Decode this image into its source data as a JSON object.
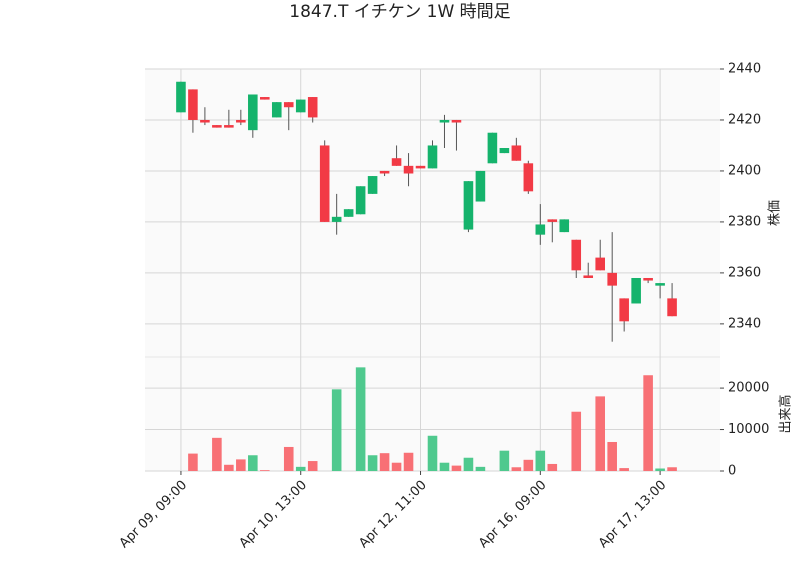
{
  "chart_data": {
    "type": "candlestick",
    "title": "1847.T イチケン 1W 時間足",
    "ylabel": "株価",
    "y2label": "出来高",
    "categories": [
      "Apr 09, 09:00",
      null,
      null,
      null,
      null,
      null,
      null,
      null,
      null,
      null,
      "Apr 10, 13:00",
      null,
      null,
      null,
      null,
      null,
      null,
      null,
      null,
      null,
      "Apr 12, 11:00",
      null,
      null,
      null,
      null,
      null,
      null,
      null,
      null,
      null,
      "Apr 16, 09:00",
      null,
      null,
      null,
      null,
      null,
      null,
      null,
      null,
      null,
      "Apr 17, 13:00",
      null
    ],
    "open": [
      2423,
      2432,
      2420,
      2418,
      2418,
      2420,
      2416,
      2429,
      2421,
      2427,
      2423,
      2429,
      2410,
      2380,
      2382,
      2383,
      2391,
      2400,
      2405,
      2402,
      2402,
      2401,
      2419,
      2420,
      2377,
      2388,
      2403,
      2407,
      2410,
      2403,
      2375,
      2381,
      2376,
      2373,
      2359,
      2366,
      2360,
      2350,
      2348,
      2358,
      2355,
      2350
    ],
    "high": [
      2435,
      2432,
      2425,
      2418,
      2424,
      2424,
      2430,
      2429,
      2427,
      2427,
      2428,
      2429,
      2412,
      2391,
      2385,
      2394,
      2398,
      2400,
      2410,
      2407,
      2402,
      2412,
      2422,
      2420,
      2396,
      2400,
      2415,
      2409,
      2413,
      2404,
      2387,
      2381,
      2381,
      2373,
      2364,
      2373,
      2376,
      2350,
      2358,
      2358,
      2356,
      2356
    ],
    "low": [
      2423,
      2415,
      2418,
      2417,
      2417,
      2418,
      2413,
      2428,
      2421,
      2416,
      2423,
      2419,
      2380,
      2375,
      2382,
      2383,
      2391,
      2398,
      2402,
      2394,
      2401,
      2401,
      2409,
      2408,
      2376,
      2388,
      2403,
      2407,
      2404,
      2391,
      2371,
      2372,
      2376,
      2358,
      2358,
      2361,
      2333,
      2337,
      2348,
      2356,
      2350,
      2343
    ],
    "close": [
      2435,
      2420,
      2419,
      2417,
      2417,
      2419,
      2430,
      2428,
      2427,
      2425,
      2428,
      2421,
      2380,
      2382,
      2385,
      2394,
      2398,
      2399,
      2402,
      2399,
      2401,
      2410,
      2420,
      2419,
      2396,
      2400,
      2415,
      2409,
      2404,
      2392,
      2379,
      2380,
      2381,
      2361,
      2358,
      2361,
      2355,
      2341,
      2358,
      2357,
      2356,
      2343
    ],
    "volume": [
      0,
      4200,
      0,
      8000,
      1500,
      2800,
      3800,
      200,
      0,
      5800,
      1000,
      2400,
      0,
      19700,
      0,
      25000,
      3800,
      4300,
      2000,
      4400,
      0,
      8500,
      2000,
      1300,
      3200,
      1000,
      0,
      4900,
      900,
      2700,
      4900,
      1700,
      0,
      14300,
      0,
      18000,
      7000,
      700,
      0,
      23100,
      600,
      900
    ],
    "up_color": "#15b36c",
    "down_color": "#f23a45",
    "volume_up_color": "#4fc98e",
    "volume_down_color": "#f87075",
    "ylim": [
      2327,
      2440
    ],
    "yticks": [
      2340,
      2360,
      2380,
      2400,
      2420,
      2440
    ],
    "y2lim": [
      0,
      27500
    ],
    "y2ticks": [
      0,
      10000,
      20000
    ],
    "grid": true
  }
}
